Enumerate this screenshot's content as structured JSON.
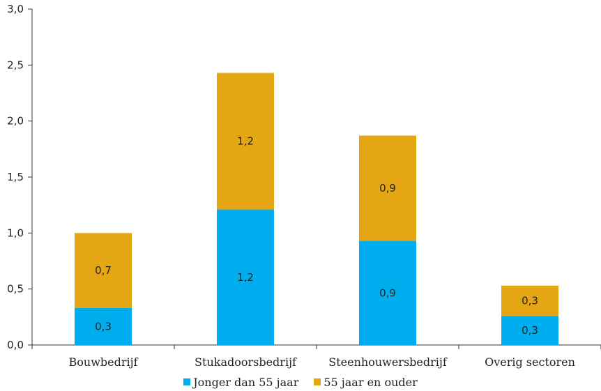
{
  "chart_data": {
    "type": "bar",
    "stacked": true,
    "categories": [
      "Bouwbedrijf",
      "Stukadoorsbedrijf",
      "Steenhouwersbedrijf",
      "Overig sectoren"
    ],
    "series": [
      {
        "name": "Jonger dan 55 jaar",
        "color": "#00AEEF",
        "values": [
          0.33,
          1.21,
          0.93,
          0.26
        ],
        "labels": [
          "0,3",
          "1,2",
          "0,9",
          "0,3"
        ]
      },
      {
        "name": "55 jaar en ouder",
        "color": "#E5A614",
        "values": [
          0.67,
          1.22,
          0.94,
          0.27
        ],
        "labels": [
          "0,7",
          "1,2",
          "0,9",
          "0,3"
        ]
      }
    ],
    "ylim": [
      0,
      3.0
    ],
    "yticks": [
      0,
      0.5,
      1.0,
      1.5,
      2.0,
      2.5,
      3.0
    ],
    "ytick_labels": [
      "0,0",
      "0,5",
      "1,0",
      "1,5",
      "2,0",
      "2,5",
      "3,0"
    ],
    "title": "",
    "xlabel": "",
    "ylabel": "",
    "grid": false,
    "legend_position": "bottom"
  }
}
